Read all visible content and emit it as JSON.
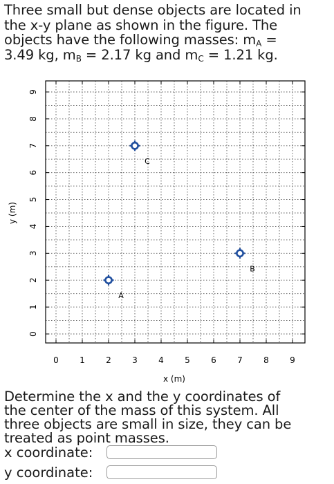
{
  "problem": {
    "line1": "Three small but dense objects are located in",
    "line2": "the x-y plane as shown in the figure. The",
    "line3a": "objects have the following masses: m",
    "sub_a": "A",
    "line3b": " =",
    "line4a": "3.49 kg, m",
    "sub_b": "B",
    "line4b": " = 2.17 kg and m",
    "sub_c": "C",
    "line4c": " = 1.21 kg."
  },
  "chart_data": {
    "type": "scatter",
    "xlabel": "x (m)",
    "ylabel": "y (m)",
    "xlim": [
      0,
      9
    ],
    "ylim": [
      0,
      9
    ],
    "x_ticks": [
      0,
      1,
      2,
      3,
      4,
      5,
      6,
      7,
      8,
      9
    ],
    "y_ticks": [
      0,
      1,
      2,
      3,
      4,
      5,
      6,
      7,
      8,
      9
    ],
    "grid": "dotted, 0.5 spacing",
    "points": [
      {
        "label": "A",
        "x": 2,
        "y": 2
      },
      {
        "label": "B",
        "x": 7,
        "y": 3
      },
      {
        "label": "C",
        "x": 3,
        "y": 7
      }
    ],
    "marker_color": "#1f4e9e"
  },
  "question": {
    "line1": "Determine the x and the y coordinates of",
    "line2": "the center of the mass of this system. All",
    "line3": "three objects are small in size, they can be",
    "line4": "treated as point masses."
  },
  "answers": {
    "x_label": "x coordinate:",
    "y_label": "y coordinate:",
    "x_value": "",
    "y_value": ""
  }
}
